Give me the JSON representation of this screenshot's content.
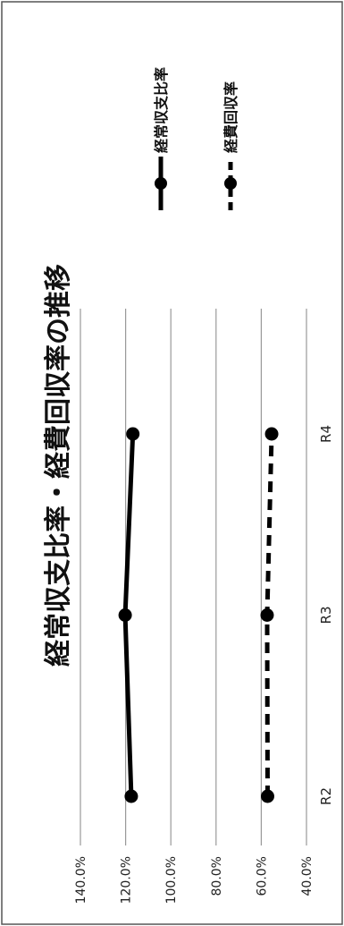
{
  "chart_data": {
    "type": "line",
    "title": "経常収支比率・経費回収率の推移",
    "categories": [
      "R2",
      "R3",
      "R4"
    ],
    "series": [
      {
        "name": "経常収支比率",
        "values": [
          117.5,
          120.2,
          116.8
        ],
        "style": "solid",
        "color": "#000000"
      },
      {
        "name": "経費回収率",
        "values": [
          57.2,
          57.4,
          55.4
        ],
        "style": "dashed",
        "color": "#000000"
      }
    ],
    "y_ticks": [
      "140.0%",
      "120.0%",
      "100.0%",
      "80.0%",
      "60.0%",
      "40.0%"
    ],
    "ylim": [
      40,
      140
    ],
    "grid": true,
    "legend_position": "right"
  }
}
